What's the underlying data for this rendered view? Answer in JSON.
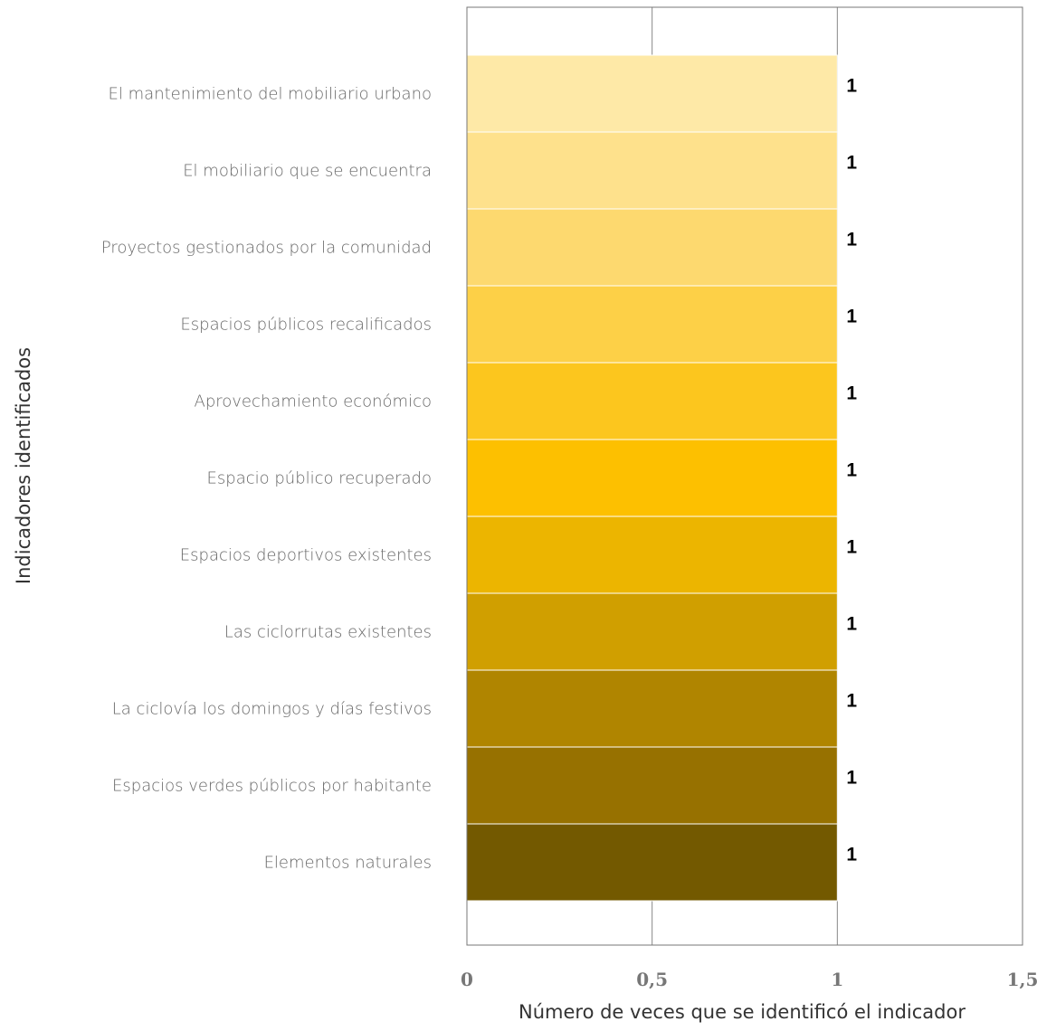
{
  "chart_data": {
    "type": "bar",
    "orientation": "horizontal",
    "categories": [
      "El mantenimiento del mobiliario urbano",
      "El mobiliario que se encuentra",
      "Proyectos gestionados por la comunidad",
      "Espacios públicos recalificados",
      "Aprovechamiento económico",
      "Espacio público recuperado",
      "Espacios deportivos existentes",
      "Las ciclorrutas existentes",
      "La ciclovía los domingos y días festivos",
      "Espacios verdes públicos por habitante",
      "Elementos naturales"
    ],
    "values": [
      1,
      1,
      1,
      1,
      1,
      1,
      1,
      1,
      1,
      1,
      1
    ],
    "data_labels": [
      "1",
      "1",
      "1",
      "1",
      "1",
      "1",
      "1",
      "1",
      "1",
      "1",
      "1"
    ],
    "colors": [
      "#FEE9A7",
      "#FEE18C",
      "#FDD96F",
      "#FDD047",
      "#FCC61E",
      "#FDC000",
      "#ECB500",
      "#D09F00",
      "#B08500",
      "#977100",
      "#735900"
    ],
    "xlabel": "Número de veces que se identificó el indicador",
    "ylabel": "Indicadores identificados",
    "xlim": [
      0,
      1.5
    ],
    "xticks": [
      0,
      0.5,
      1,
      1.5
    ],
    "xtick_labels": [
      "0",
      "0,5",
      "1",
      "1,5"
    ],
    "grid": "vertical"
  }
}
